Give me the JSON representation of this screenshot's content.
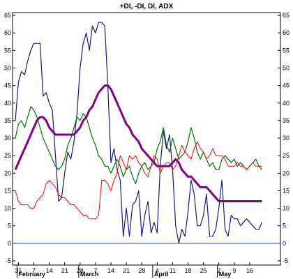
{
  "chart_data": {
    "type": "line",
    "title": "+DI, -DI, DI, ADX",
    "ylim": [
      -5,
      67
    ],
    "yticks": [
      -5,
      0,
      5,
      10,
      15,
      20,
      25,
      30,
      35,
      40,
      45,
      50,
      55,
      60,
      65
    ],
    "x_ticks": [
      "31",
      "7",
      "14",
      "21",
      "28",
      "7",
      "14",
      "21",
      "28",
      "4",
      "11",
      "18",
      "25",
      "2",
      "9",
      "16"
    ],
    "x_tick_index": [
      1,
      6,
      11,
      16,
      21,
      26,
      31,
      36,
      41,
      46,
      51,
      56,
      61,
      66,
      71,
      76
    ],
    "x_tick_label_overrides": {
      "9": "9",
      "4": "4"
    },
    "month_labels": [
      {
        "label": "February",
        "index": 1
      },
      {
        "label": "March",
        "index": 21
      },
      {
        "label": "April",
        "index": 45
      },
      {
        "label": "May",
        "index": 66
      }
    ],
    "reference_line": {
      "value": 0,
      "color": "#3333ff"
    },
    "n_points": 81,
    "series": [
      {
        "color": "#1a1a80",
        "width": 1.2,
        "values": [
          35,
          46,
          49,
          48,
          52,
          55,
          57,
          57,
          57,
          42,
          43,
          40,
          38,
          25,
          12,
          13,
          20,
          26,
          24,
          29,
          37,
          50,
          57,
          60,
          55,
          62,
          60,
          63,
          63,
          62,
          45,
          23,
          27,
          21,
          18,
          2,
          10,
          2,
          11,
          12,
          15,
          2,
          8,
          12,
          3,
          6,
          3,
          22,
          32,
          27,
          31,
          21,
          5,
          0,
          4,
          2,
          9,
          18,
          14,
          5,
          5,
          8,
          14,
          2,
          2,
          4,
          10,
          18,
          4,
          2,
          8,
          7,
          7,
          5,
          6,
          7,
          6,
          5,
          4,
          4,
          6
        ]
      },
      {
        "color": "#007700",
        "width": 1.2,
        "values": [
          30,
          34,
          35,
          33,
          36,
          39,
          38,
          36,
          33,
          30,
          28,
          26,
          24,
          22,
          21,
          22,
          24,
          28,
          30,
          33,
          36,
          35,
          37,
          36,
          33,
          30,
          28,
          25,
          24,
          22,
          22,
          20,
          22,
          24,
          22,
          19,
          21,
          22,
          19,
          17,
          20,
          22,
          23,
          21,
          22,
          23,
          27,
          29,
          33,
          28,
          26,
          30,
          27,
          24,
          25,
          26,
          29,
          33,
          30,
          26,
          24,
          26,
          24,
          22,
          23,
          21,
          21,
          24,
          25,
          24,
          23,
          24,
          22,
          23,
          22,
          21,
          22,
          23,
          24,
          22,
          21
        ]
      },
      {
        "color": "#ff0000",
        "width": 1.0,
        "values": [
          15,
          12,
          11,
          11,
          11,
          10,
          10,
          12,
          13,
          14,
          17,
          18,
          17,
          16,
          14,
          13,
          13,
          12,
          11,
          11,
          10,
          9,
          8,
          8,
          7,
          7,
          7,
          8,
          18,
          18,
          17,
          15,
          18,
          20,
          25,
          23,
          21,
          25,
          24,
          25,
          23,
          22,
          20,
          19,
          22,
          25,
          24,
          20,
          22,
          23,
          23,
          21,
          22,
          25,
          28,
          26,
          25,
          24,
          27,
          29,
          27,
          26,
          24,
          25,
          27,
          25,
          25,
          25,
          24,
          22,
          22,
          22,
          23,
          22,
          22,
          21,
          22,
          23,
          22,
          22,
          22
        ]
      },
      {
        "color": "#800080",
        "width": 3.0,
        "values": [
          21,
          23,
          25,
          27,
          29,
          31,
          33,
          35,
          36,
          36,
          35,
          33,
          32,
          31,
          31,
          31,
          31,
          31,
          31,
          31,
          32,
          33,
          35,
          36,
          38,
          39,
          41,
          43,
          44,
          45,
          45,
          44,
          42,
          40,
          38,
          36,
          34,
          33,
          31,
          30,
          29,
          27,
          26,
          25,
          24,
          23,
          22,
          22,
          22,
          22,
          22,
          23,
          24,
          23,
          21,
          20,
          19,
          19,
          18,
          17,
          16,
          16,
          16,
          15,
          14,
          13,
          12,
          12,
          12,
          12,
          12,
          12,
          12,
          12,
          12,
          12,
          12,
          12,
          12,
          12,
          12
        ]
      }
    ]
  }
}
